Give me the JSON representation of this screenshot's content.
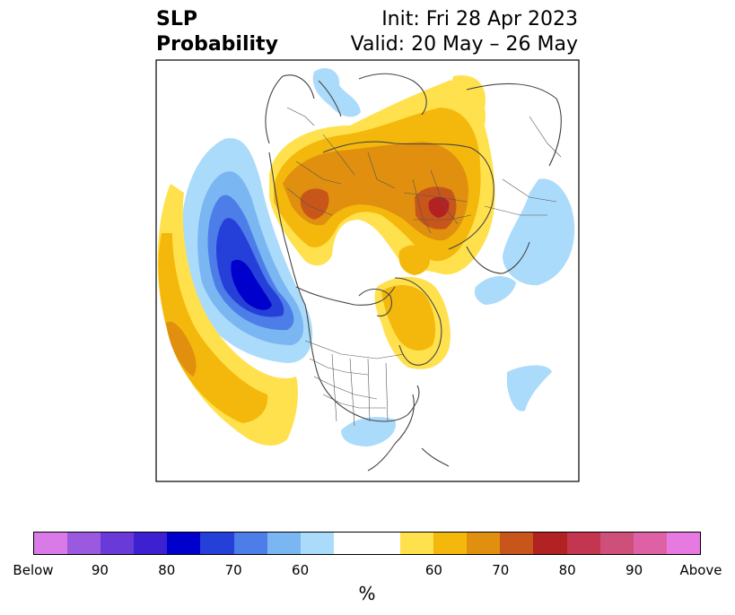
{
  "header": {
    "title": "SLP\nProbability",
    "init": "Init: Fri 28 Apr 2023",
    "valid": "Valid: 20 May – 26 May"
  },
  "colorbar": {
    "label": "%",
    "colors": [
      "#d97ae8",
      "#9b59e0",
      "#6a3ad9",
      "#3d20cf",
      "#0000cc",
      "#2540d9",
      "#4d7de8",
      "#7ab6f2",
      "#abdbfb",
      "#ffffff",
      "#ffffff",
      "#ffe14d",
      "#f4b80c",
      "#e0900e",
      "#c8561a",
      "#b22222",
      "#c43550",
      "#cd4f7a",
      "#de61a6",
      "#e67ae1"
    ],
    "ticks": [
      {
        "label": "Below"
      },
      {
        "label": "90"
      },
      {
        "label": "80"
      },
      {
        "label": "70"
      },
      {
        "label": "60"
      },
      {
        "label": "60"
      },
      {
        "label": "70"
      },
      {
        "label": "80"
      },
      {
        "label": "90"
      },
      {
        "label": "Above"
      }
    ]
  }
}
